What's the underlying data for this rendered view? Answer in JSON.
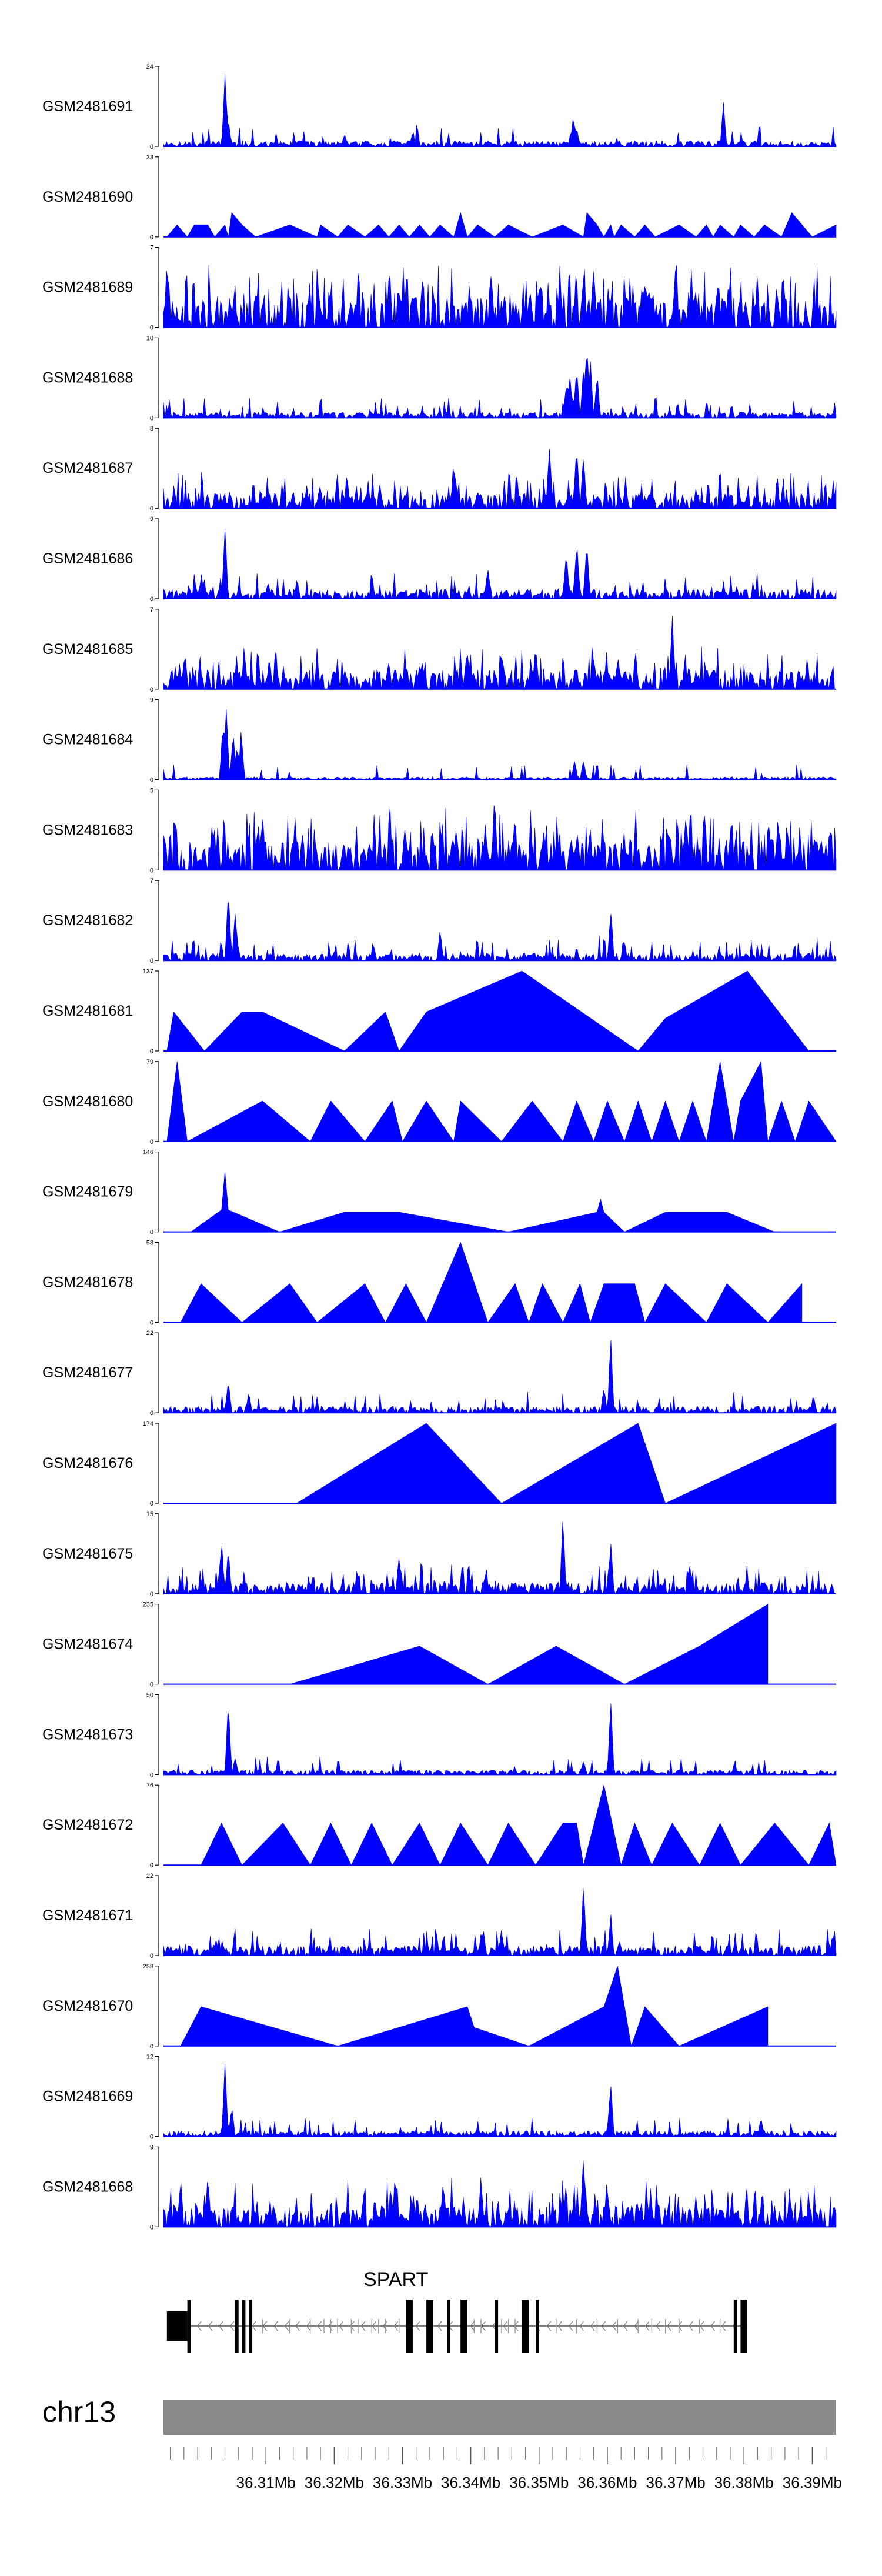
{
  "chart_data": {
    "type": "area",
    "title": "",
    "xlabel": "",
    "ylabel": "",
    "chromosome": "chr13",
    "gene_label": "SPART",
    "xlim": [
      36.295,
      36.3935
    ],
    "x_ticks": [
      "36.31Mb",
      "36.32Mb",
      "36.33Mb",
      "36.34Mb",
      "36.35Mb",
      "36.36Mb",
      "36.37Mb",
      "36.38Mb",
      "36.39Mb"
    ],
    "x_tick_values": [
      36.31,
      36.32,
      36.33,
      36.34,
      36.35,
      36.36,
      36.37,
      36.38,
      36.39
    ],
    "colors": {
      "signal": "#0000ff",
      "ideogram": "#888888",
      "axis": "#000000"
    },
    "series": [
      {
        "name": "GSM2481691",
        "ymax": 24,
        "ymax_label": "24",
        "ymin_label": "0",
        "style": "dense",
        "seed": 11,
        "base": 0.06,
        "noise": 0.08,
        "peaks": [
          [
            36.304,
            24
          ],
          [
            36.3045,
            9
          ],
          [
            36.355,
            10
          ],
          [
            36.3555,
            6
          ],
          [
            36.377,
            14
          ],
          [
            36.3215,
            4
          ]
        ]
      },
      {
        "name": "GSM2481690",
        "ymax": 33,
        "ymax_label": "33",
        "ymin_label": "0",
        "style": "tri",
        "x": [
          36.2955,
          36.297,
          36.2985,
          36.2995,
          36.3015,
          36.3025,
          36.304,
          36.3045,
          36.305,
          36.3065,
          36.3085,
          36.3135,
          36.3175,
          36.318,
          36.3205,
          36.322,
          36.3245,
          36.3265,
          36.328,
          36.3295,
          36.331,
          36.3325,
          36.334,
          36.3355,
          36.3375,
          36.3385,
          36.3395,
          36.341,
          36.3435,
          36.3455,
          36.349,
          36.3535,
          36.3565,
          36.357,
          36.3585,
          36.3595,
          36.3605,
          36.361,
          36.362,
          36.364,
          36.3655,
          36.367,
          36.3705,
          36.373,
          36.3745,
          36.3755,
          36.3765,
          36.3785,
          36.3795,
          36.3815,
          36.383,
          36.3855,
          36.387,
          36.39,
          36.3935
        ],
        "y": [
          0,
          5,
          0,
          5,
          5,
          0,
          5,
          0,
          10,
          5,
          0,
          5,
          0,
          5,
          0,
          5,
          0,
          5,
          0,
          5,
          0,
          5,
          0,
          5,
          0,
          10,
          0,
          5,
          0,
          5,
          0,
          5,
          0,
          10,
          5,
          0,
          5,
          0,
          5,
          0,
          5,
          0,
          5,
          0,
          5,
          0,
          5,
          0,
          5,
          0,
          5,
          0,
          10,
          0,
          5
        ]
      },
      {
        "name": "GSM2481689",
        "ymax": 7,
        "ymax_label": "7",
        "ymin_label": "0",
        "style": "dense",
        "seed": 23,
        "base": 0.32,
        "noise": 0.28,
        "peaks": [
          [
            36.343,
            5
          ],
          [
            36.358,
            6
          ],
          [
            36.37,
            6
          ],
          [
            36.35,
            4
          ]
        ]
      },
      {
        "name": "GSM2481688",
        "ymax": 10,
        "ymax_label": "10",
        "ymin_label": "0",
        "style": "dense",
        "seed": 31,
        "base": 0.06,
        "noise": 0.12,
        "peaks": [
          [
            36.357,
            10
          ],
          [
            36.3575,
            8
          ],
          [
            36.3555,
            7
          ],
          [
            36.3545,
            6
          ],
          [
            36.354,
            5
          ],
          [
            36.3585,
            6
          ],
          [
            36.3565,
            7
          ]
        ]
      },
      {
        "name": "GSM2481687",
        "ymax": 8,
        "ymax_label": "8",
        "ymin_label": "0",
        "style": "dense",
        "seed": 37,
        "base": 0.16,
        "noise": 0.22,
        "peaks": [
          [
            36.3515,
            7
          ],
          [
            36.3555,
            7
          ],
          [
            36.3565,
            6
          ],
          [
            36.3375,
            5
          ]
        ]
      },
      {
        "name": "GSM2481686",
        "ymax": 9,
        "ymax_label": "9",
        "ymin_label": "0",
        "style": "dense",
        "seed": 41,
        "base": 0.1,
        "noise": 0.14,
        "peaks": [
          [
            36.304,
            9
          ],
          [
            36.354,
            6
          ],
          [
            36.3555,
            7
          ],
          [
            36.357,
            7
          ],
          [
            36.3425,
            4
          ]
        ]
      },
      {
        "name": "GSM2481685",
        "ymax": 7,
        "ymax_label": "7",
        "ymin_label": "0",
        "style": "dense",
        "seed": 43,
        "base": 0.2,
        "noise": 0.22,
        "peaks": [
          [
            36.3695,
            7
          ],
          [
            36.3495,
            4
          ],
          [
            36.3105,
            3
          ]
        ]
      },
      {
        "name": "GSM2481684",
        "ymax": 9,
        "ymax_label": "9",
        "ymin_label": "0",
        "style": "dense",
        "seed": 47,
        "base": 0.03,
        "noise": 0.06,
        "peaks": [
          [
            36.3042,
            9
          ],
          [
            36.3037,
            7
          ],
          [
            36.3052,
            6
          ],
          [
            36.3064,
            6
          ],
          [
            36.3058,
            4
          ],
          [
            36.3552,
            2.5
          ],
          [
            36.3565,
            2.5
          ]
        ]
      },
      {
        "name": "GSM2481683",
        "ymax": 5,
        "ymax_label": "5",
        "ymin_label": "0",
        "style": "dense",
        "seed": 53,
        "base": 0.32,
        "noise": 0.3,
        "peaks": [
          [
            36.3435,
            5
          ],
          [
            36.3095,
            4
          ],
          [
            36.3715,
            4
          ],
          [
            36.385,
            3.6
          ]
        ]
      },
      {
        "name": "GSM2481682",
        "ymax": 7,
        "ymax_label": "7",
        "ymin_label": "0",
        "style": "dense",
        "seed": 59,
        "base": 0.08,
        "noise": 0.13,
        "peaks": [
          [
            36.3045,
            7
          ],
          [
            36.3055,
            4.5
          ],
          [
            36.3605,
            5
          ],
          [
            36.3355,
            3
          ]
        ]
      },
      {
        "name": "GSM2481681",
        "ymax": 137,
        "ymax_label": "137",
        "ymin_label": "0",
        "style": "tri",
        "x": [
          36.2955,
          36.2965,
          36.301,
          36.3065,
          36.3095,
          36.3215,
          36.3275,
          36.3295,
          36.3335,
          36.3475,
          36.3645,
          36.3685,
          36.3805,
          36.3895
        ],
        "y": [
          0,
          67,
          0,
          67,
          67,
          0,
          67,
          0,
          67,
          137,
          0,
          56,
          137,
          0
        ]
      },
      {
        "name": "GSM2481680",
        "ymax": 79,
        "ymax_label": "79",
        "ymin_label": "0",
        "style": "tri",
        "x": [
          36.2955,
          36.297,
          36.2985,
          36.3095,
          36.3165,
          36.3195,
          36.3245,
          36.3285,
          36.33,
          36.3335,
          36.3375,
          36.3385,
          36.3445,
          36.349,
          36.3535,
          36.3555,
          36.358,
          36.36,
          36.3625,
          36.3645,
          36.3665,
          36.3685,
          36.3705,
          36.3725,
          36.3745,
          36.3765,
          36.3785,
          36.3795,
          36.3825,
          36.3835,
          36.3855,
          36.3875,
          36.3895,
          36.3935
        ],
        "y": [
          0,
          79,
          0,
          40,
          0,
          40,
          0,
          40,
          0,
          40,
          0,
          40,
          0,
          40,
          0,
          40,
          0,
          40,
          0,
          40,
          0,
          40,
          0,
          40,
          0,
          79,
          0,
          40,
          79,
          0,
          40,
          0,
          40,
          0
        ]
      },
      {
        "name": "GSM2481679",
        "ymax": 146,
        "ymax_label": "146",
        "ymin_label": "0",
        "style": "tri",
        "x": [
          36.299,
          36.3035,
          36.304,
          36.3045,
          36.312,
          36.3215,
          36.3295,
          36.3455,
          36.3585,
          36.359,
          36.3595,
          36.3625,
          36.3685,
          36.3775,
          36.3845
        ],
        "y": [
          0,
          40,
          110,
          40,
          0,
          36,
          36,
          0,
          36,
          60,
          36,
          0,
          36,
          36,
          0
        ]
      },
      {
        "name": "GSM2481678",
        "ymax": 58,
        "ymax_label": "58",
        "ymin_label": "0",
        "style": "tri",
        "x": [
          36.2975,
          36.3005,
          36.3065,
          36.3135,
          36.3175,
          36.3245,
          36.3275,
          36.3305,
          36.3335,
          36.3385,
          36.3425,
          36.3465,
          36.3485,
          36.3505,
          36.3535,
          36.356,
          36.3575,
          36.3595,
          36.364,
          36.3655,
          36.3685,
          36.3745,
          36.3775,
          36.3835,
          36.3885
        ],
        "y": [
          0,
          28,
          0,
          28,
          0,
          28,
          0,
          28,
          0,
          58,
          0,
          28,
          0,
          28,
          0,
          28,
          0,
          28,
          28,
          0,
          28,
          0,
          28,
          0,
          28
        ]
      },
      {
        "name": "GSM2481677",
        "ymax": 22,
        "ymax_label": "22",
        "ymin_label": "0",
        "style": "dense",
        "seed": 61,
        "base": 0.07,
        "noise": 0.1,
        "peaks": [
          [
            36.3605,
            22
          ],
          [
            36.3595,
            8
          ],
          [
            36.3045,
            10
          ],
          [
            36.3075,
            6
          ]
        ]
      },
      {
        "name": "GSM2481676",
        "ymax": 174,
        "ymax_label": "174",
        "ymin_label": "0",
        "style": "tri",
        "x": [
          36.3145,
          36.3335,
          36.3445,
          36.3645,
          36.3685,
          36.3935
        ],
        "y": [
          0,
          174,
          0,
          174,
          0,
          174
        ]
      },
      {
        "name": "GSM2481675",
        "ymax": 15,
        "ymax_label": "15",
        "ymin_label": "0",
        "style": "dense",
        "seed": 67,
        "base": 0.12,
        "noise": 0.14,
        "peaks": [
          [
            36.3035,
            11
          ],
          [
            36.3045,
            9
          ],
          [
            36.3535,
            15
          ],
          [
            36.3605,
            11
          ],
          [
            36.3295,
            8
          ]
        ]
      },
      {
        "name": "GSM2481674",
        "ymax": 235,
        "ymax_label": "235",
        "ymin_label": "0",
        "style": "tri",
        "x": [
          36.3135,
          36.3325,
          36.3425,
          36.3525,
          36.3625,
          36.3735,
          36.3835
        ],
        "y": [
          0,
          112,
          0,
          112,
          0,
          112,
          235
        ]
      },
      {
        "name": "GSM2481673",
        "ymax": 50,
        "ymax_label": "50",
        "ymin_label": "0",
        "style": "dense",
        "seed": 71,
        "base": 0.05,
        "noise": 0.08,
        "peaks": [
          [
            36.3605,
            50
          ],
          [
            36.3045,
            50
          ],
          [
            36.3055,
            12
          ],
          [
            36.3565,
            10
          ]
        ]
      },
      {
        "name": "GSM2481672",
        "ymax": 76,
        "ymax_label": "76",
        "ymin_label": "0",
        "style": "tri",
        "x": [
          36.3005,
          36.3035,
          36.3065,
          36.3125,
          36.3165,
          36.3195,
          36.3225,
          36.3255,
          36.3285,
          36.3325,
          36.3355,
          36.3385,
          36.3425,
          36.3455,
          36.3495,
          36.3535,
          36.3555,
          36.3565,
          36.3595,
          36.362,
          36.364,
          36.3665,
          36.3695,
          36.3735,
          36.3765,
          36.3795,
          36.3845,
          36.3895,
          36.3925,
          36.3935
        ],
        "y": [
          0,
          40,
          0,
          40,
          0,
          40,
          0,
          40,
          0,
          40,
          0,
          40,
          0,
          40,
          0,
          40,
          40,
          0,
          76,
          0,
          40,
          0,
          40,
          0,
          40,
          0,
          40,
          0,
          40,
          0
        ]
      },
      {
        "name": "GSM2481671",
        "ymax": 22,
        "ymax_label": "22",
        "ymin_label": "0",
        "style": "dense",
        "seed": 73,
        "base": 0.11,
        "noise": 0.14,
        "peaks": [
          [
            36.3565,
            22
          ],
          [
            36.3605,
            12
          ],
          [
            36.3445,
            8
          ]
        ]
      },
      {
        "name": "GSM2481670",
        "ymax": 258,
        "ymax_label": "258",
        "ymin_label": "0",
        "style": "tri",
        "x": [
          36.2975,
          36.3005,
          36.3205,
          36.3395,
          36.3405,
          36.3485,
          36.3595,
          36.3615,
          36.3635,
          36.3655,
          36.3705,
          36.3835
        ],
        "y": [
          0,
          127,
          0,
          127,
          60,
          0,
          127,
          258,
          0,
          127,
          0,
          127
        ]
      },
      {
        "name": "GSM2481669",
        "ymax": 12,
        "ymax_label": "12",
        "ymin_label": "0",
        "style": "dense",
        "seed": 79,
        "base": 0.06,
        "noise": 0.09,
        "peaks": [
          [
            36.304,
            12
          ],
          [
            36.305,
            5
          ],
          [
            36.3605,
            9
          ],
          [
            36.3825,
            3
          ]
        ]
      },
      {
        "name": "GSM2481668",
        "ymax": 9,
        "ymax_label": "9",
        "ymin_label": "0",
        "style": "dense",
        "seed": 83,
        "base": 0.22,
        "noise": 0.24,
        "peaks": [
          [
            36.3565,
            9
          ],
          [
            36.2975,
            6
          ],
          [
            36.3015,
            6
          ],
          [
            36.3415,
            6
          ]
        ]
      }
    ],
    "gene_model": {
      "exons": [
        [
          36.2955,
          36.2985
        ],
        [
          36.2985,
          36.299
        ],
        [
          36.3055,
          36.306
        ],
        [
          36.3065,
          36.307
        ],
        [
          36.3075,
          36.308
        ],
        [
          36.3305,
          36.3315
        ],
        [
          36.3335,
          36.3345
        ],
        [
          36.3365,
          36.337
        ],
        [
          36.3385,
          36.3395
        ],
        [
          36.3435,
          36.344
        ],
        [
          36.3475,
          36.3485
        ],
        [
          36.3495,
          36.35
        ],
        [
          36.3785,
          36.379
        ],
        [
          36.3795,
          36.3805
        ]
      ],
      "small_exons": [
        36.3095,
        36.3135,
        36.3165,
        36.3185,
        36.3195,
        36.3205,
        36.3225,
        36.3235,
        36.3255,
        36.3265,
        36.3275,
        36.3295,
        36.3405,
        36.3415,
        36.3445,
        36.3455,
        36.3465,
        36.3525,
        36.3555,
        36.3585,
        36.3615,
        36.3645,
        36.3665,
        36.3685,
        36.3705,
        36.3735,
        36.3765
      ],
      "intron_start": 36.299,
      "intron_end": 36.3805
    }
  }
}
